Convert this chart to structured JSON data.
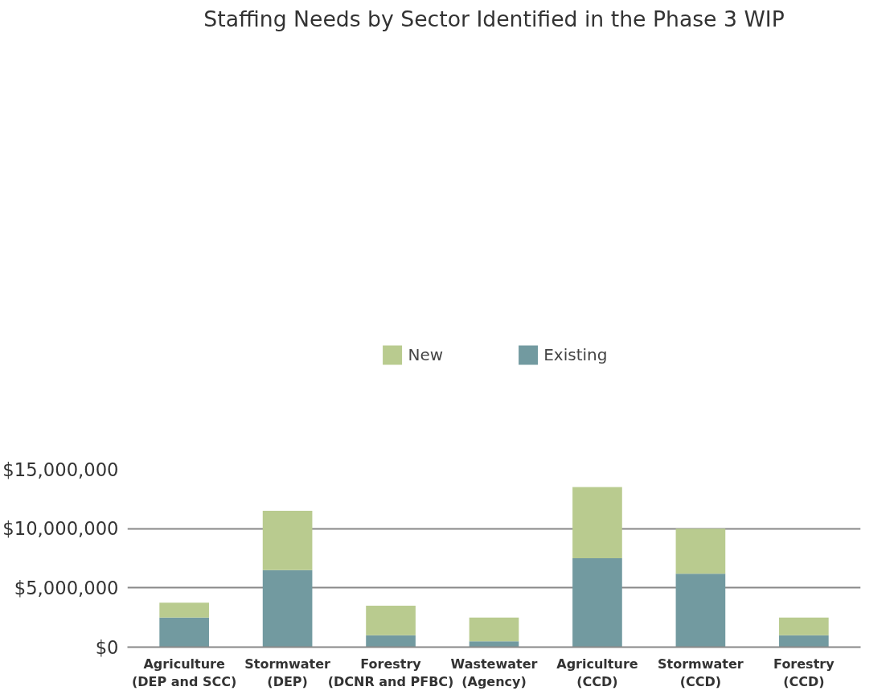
{
  "chart_data": {
    "type": "bar",
    "title": "Staffing Needs by Sector Identified in the Phase 3 WIP",
    "categories": [
      "Agriculture\n(DEP and SCC)",
      "Stormwater\n(DEP)",
      "Forestry\n(DCNR and PFBC)",
      "Wastewater\n(Agency)",
      "Agriculture\n(CCD)",
      "Stormwater\n(CCD)",
      "Forestry\n(CCD)"
    ],
    "series": [
      {
        "name": "Existing",
        "color": "#729aa0",
        "values": [
          2500000,
          6500000,
          1000000,
          500000,
          7500000,
          6200000,
          1000000
        ]
      },
      {
        "name": "New",
        "color": "#b9cb8f",
        "values": [
          1250000,
          5000000,
          2500000,
          2000000,
          6000000,
          3800000,
          1500000
        ]
      }
    ],
    "stacked": true,
    "ylim": [
      0,
      15000000
    ],
    "yticks": [
      {
        "value": 0,
        "label": "$0"
      },
      {
        "value": 5000000,
        "label": "$5,000,000"
      },
      {
        "value": 10000000,
        "label": "$10,000,000"
      },
      {
        "value": 15000000,
        "label": "$15,000,000"
      }
    ],
    "grid": "y",
    "legend": "top"
  }
}
